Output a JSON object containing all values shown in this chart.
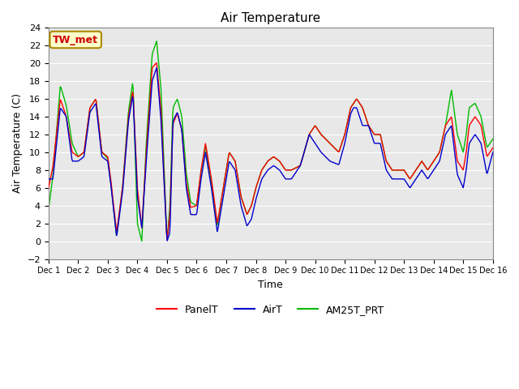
{
  "title": "Air Temperature",
  "xlabel": "Time",
  "ylabel": "Air Temperature (C)",
  "ylim": [
    -2,
    24
  ],
  "yticks": [
    -2,
    0,
    2,
    4,
    6,
    8,
    10,
    12,
    14,
    16,
    18,
    20,
    22,
    24
  ],
  "xtick_labels": [
    "Dec 1",
    "Dec 2",
    "Dec 3",
    "Dec 4",
    "Dec 5",
    "Dec 6",
    "Dec 7",
    "Dec 8",
    "Dec 9",
    "Dec 10",
    "Dec 11",
    "Dec 12",
    "Dec 13",
    "Dec 14",
    "Dec 15",
    "Dec 16"
  ],
  "series": {
    "PanelT": {
      "color": "#ff0000",
      "linewidth": 1.0
    },
    "AirT": {
      "color": "#0000cc",
      "linewidth": 1.0
    },
    "AM25T_PRT": {
      "color": "#00bb00",
      "linewidth": 1.0
    }
  },
  "bg_color": "#e8e8e8",
  "annotation_text": "TW_met",
  "annotation_color": "#cc0000",
  "annotation_bg": "#ffffcc",
  "annotation_border": "#aa8800",
  "fig_width": 6.4,
  "fig_height": 4.8,
  "dpi": 100
}
